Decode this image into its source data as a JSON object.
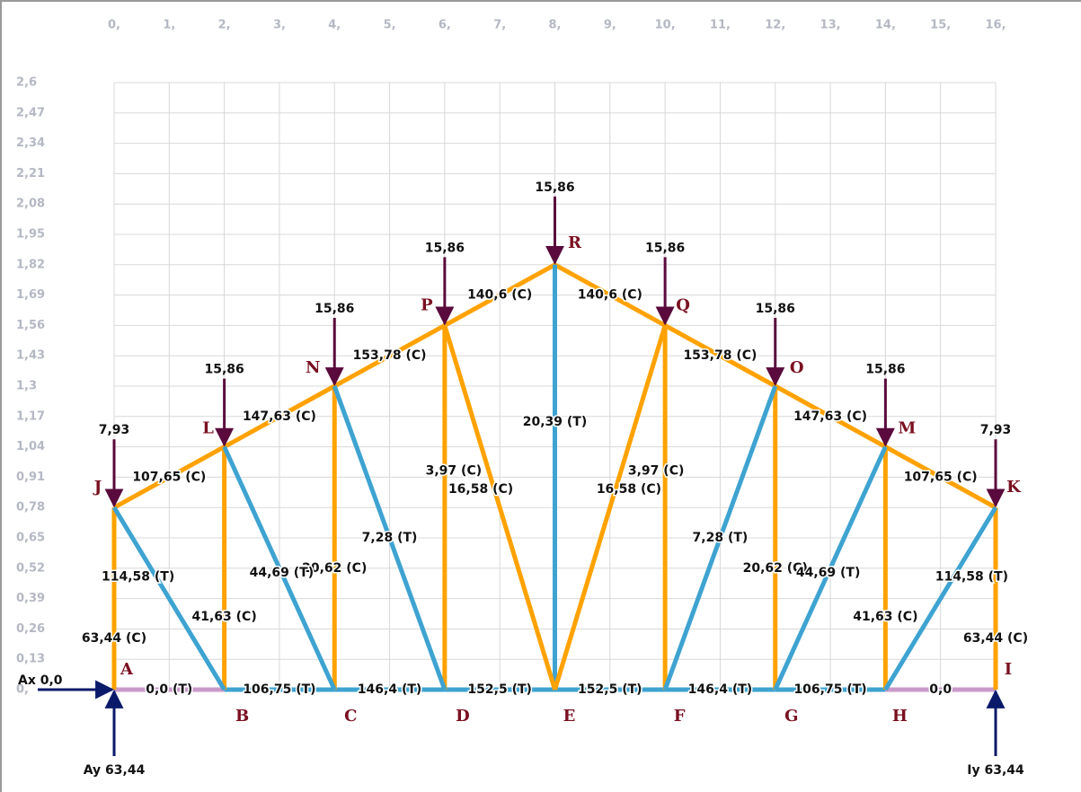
{
  "axes": {
    "x_labels": [
      "0,",
      "1,",
      "2,",
      "3,",
      "4,",
      "5,",
      "6,",
      "7,",
      "8,",
      "9,",
      "10,",
      "11,",
      "12,",
      "13,",
      "14,",
      "15,",
      "16,"
    ],
    "y_labels": [
      "2,6",
      "2,47",
      "2,34",
      "2,21",
      "2,08",
      "1,95",
      "1,82",
      "1,69",
      "1,56",
      "1,43",
      "1,3",
      "1,17",
      "1,04",
      "0,91",
      "0,78",
      "0,65",
      "0,52",
      "0,39",
      "0,26",
      "0,13",
      "0,"
    ]
  },
  "nodes": [
    {
      "label": "A"
    },
    {
      "label": "B"
    },
    {
      "label": "C"
    },
    {
      "label": "D"
    },
    {
      "label": "E"
    },
    {
      "label": "F"
    },
    {
      "label": "G"
    },
    {
      "label": "H"
    },
    {
      "label": "I"
    },
    {
      "label": "J"
    },
    {
      "label": "L"
    },
    {
      "label": "N"
    },
    {
      "label": "P"
    },
    {
      "label": "R"
    },
    {
      "label": "Q"
    },
    {
      "label": "O"
    },
    {
      "label": "M"
    },
    {
      "label": "K"
    }
  ],
  "members": [
    {
      "label": "0,0 (T)"
    },
    {
      "label": "106,75 (T)"
    },
    {
      "label": "146,4 (T)"
    },
    {
      "label": "152,5 (T)"
    },
    {
      "label": "152,5 (T)"
    },
    {
      "label": "146,4 (T)"
    },
    {
      "label": "106,75 (T)"
    },
    {
      "label": "0,0"
    },
    {
      "label": "107,65 (C)"
    },
    {
      "label": "147,63 (C)"
    },
    {
      "label": "153,78 (C)"
    },
    {
      "label": "140,6 (C)"
    },
    {
      "label": "140,6 (C)"
    },
    {
      "label": "153,78 (C)"
    },
    {
      "label": "147,63 (C)"
    },
    {
      "label": "107,65 (C)"
    },
    {
      "label": "63,44 (C)"
    },
    {
      "label": "41,63 (C)"
    },
    {
      "label": "20,62 (C)"
    },
    {
      "label": "3,97 (C)"
    },
    {
      "label": "20,39 (T)"
    },
    {
      "label": "3,97 (C)"
    },
    {
      "label": "20,62 (C)"
    },
    {
      "label": "41,63 (C)"
    },
    {
      "label": "63,44 (C)"
    },
    {
      "label": "114,58 (T)"
    },
    {
      "label": "44,69 (T)"
    },
    {
      "label": "7,28 (T)"
    },
    {
      "label": "16,58 (C)"
    },
    {
      "label": "16,58 (C)"
    },
    {
      "label": "7,28 (T)"
    },
    {
      "label": "44,69 (T)"
    },
    {
      "label": "114,58 (T)"
    }
  ],
  "loads": [
    {
      "label": "7,93"
    },
    {
      "label": "15,86"
    },
    {
      "label": "15,86"
    },
    {
      "label": "15,86"
    },
    {
      "label": "15,86"
    },
    {
      "label": "15,86"
    },
    {
      "label": "15,86"
    },
    {
      "label": "15,86"
    },
    {
      "label": "7,93"
    }
  ],
  "reactions": [
    {
      "label": "Ax 0,0"
    },
    {
      "label": "Ay 63,44"
    },
    {
      "label": "Iy 63,44"
    }
  ]
}
